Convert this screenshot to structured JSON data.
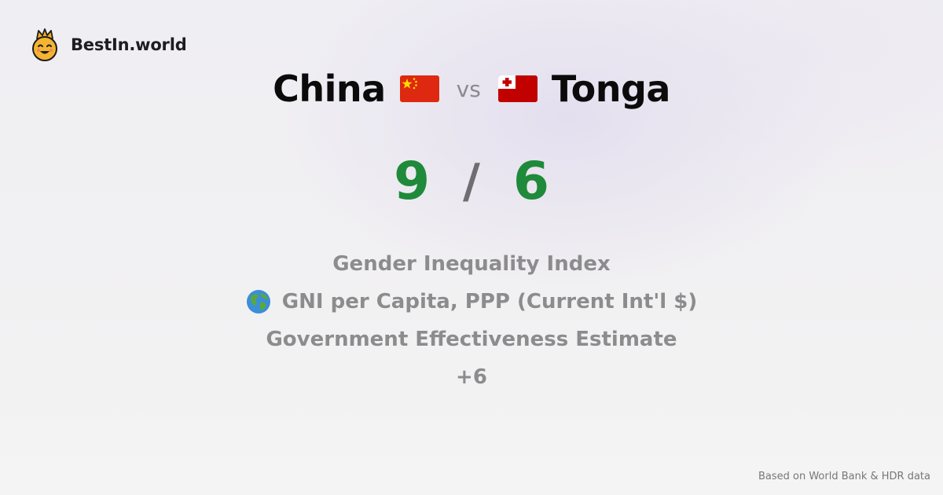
{
  "brand": {
    "name": "BestIn.world",
    "logo_icon": "crowned-smiley-icon"
  },
  "comparison": {
    "left_country": "China",
    "left_flag_icon": "china-flag-icon",
    "vs_label": "vs",
    "right_country": "Tonga",
    "right_flag_icon": "tonga-flag-icon"
  },
  "score": {
    "left": "9",
    "separator": "/",
    "right": "6",
    "color": "#1f8a3a"
  },
  "metrics": [
    {
      "label": "Gender Inequality Index"
    },
    {
      "label": "GNI per Capita, PPP (Current Int'l $)",
      "icon": "globe-icon"
    },
    {
      "label": "Government Effectiveness Estimate"
    },
    {
      "label": "+6"
    }
  ],
  "footer": {
    "source": "Based on World Bank & HDR data"
  }
}
